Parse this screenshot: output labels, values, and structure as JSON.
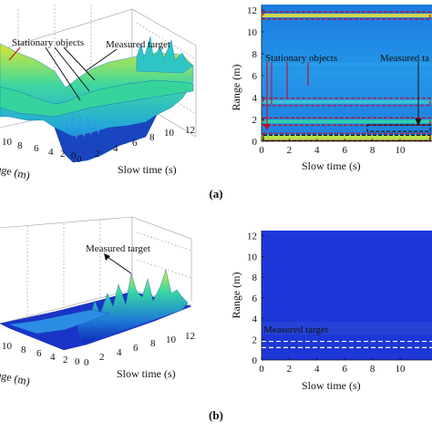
{
  "panels": [
    {
      "caption": "(a)",
      "surface": {
        "type": "surface3d",
        "xlabel": "Slow time (s)",
        "ylabel": "Range (m)",
        "x_ticks": [
          "0",
          "2",
          "4",
          "6",
          "8",
          "10",
          "12"
        ],
        "y_ticks": [
          "0",
          "2",
          "4",
          "6",
          "8",
          "10"
        ],
        "annotations": [
          {
            "text": "Stationary objects",
            "color": "#d1001c"
          },
          {
            "text": "Measured target",
            "color": "#111111"
          }
        ]
      },
      "heatmap": {
        "type": "heatmap",
        "xlabel": "Slow time (s)",
        "ylabel": "Range (m)",
        "x_ticks": [
          "0",
          "2",
          "4",
          "6",
          "8",
          "10"
        ],
        "y_ticks": [
          "0",
          "2",
          "4",
          "6",
          "8",
          "10",
          "12"
        ],
        "xlim": [
          0,
          12
        ],
        "ylim": [
          0,
          12.5
        ],
        "annotations": [
          {
            "text": "Stationary objects",
            "color": "#d1001c"
          },
          {
            "text": "Measured ta",
            "color": "#111111"
          }
        ]
      }
    },
    {
      "caption": "(b)",
      "surface": {
        "type": "surface3d",
        "xlabel": "Slow time (s)",
        "ylabel": "Range (m)",
        "x_ticks": [
          "0",
          "2",
          "4",
          "6",
          "8",
          "10",
          "12"
        ],
        "y_ticks": [
          "0",
          "2",
          "4",
          "6",
          "8",
          "10"
        ],
        "annotations": [
          {
            "text": "Measured target",
            "color": "#111111"
          }
        ]
      },
      "heatmap": {
        "type": "heatmap",
        "xlabel": "Slow time (s)",
        "ylabel": "Range (m)",
        "x_ticks": [
          "0",
          "2",
          "4",
          "6",
          "8",
          "10"
        ],
        "y_ticks": [
          "0",
          "2",
          "4",
          "6",
          "8",
          "10",
          "12"
        ],
        "xlim": [
          0,
          12
        ],
        "ylim": [
          0,
          12.5
        ],
        "annotations": [
          {
            "text": "Measured target",
            "color": "#ffffff"
          }
        ]
      }
    }
  ],
  "chart_data": [
    {
      "type": "heatmap",
      "panel": "(a)",
      "xlabel": "Slow time (s)",
      "ylabel": "Range (m)",
      "xlim": [
        0,
        12
      ],
      "ylim": [
        0,
        12.5
      ],
      "stationary_object_ranges_m": [
        0.4,
        1.8,
        3.6,
        11.5
      ],
      "measured_target_range_m": [
        0.9,
        1.5
      ]
    },
    {
      "type": "heatmap",
      "panel": "(b)",
      "xlabel": "Slow time (s)",
      "ylabel": "Range (m)",
      "xlim": [
        0,
        12
      ],
      "ylim": [
        0,
        12.5
      ],
      "measured_target_range_m": [
        1.2,
        1.8
      ]
    }
  ]
}
